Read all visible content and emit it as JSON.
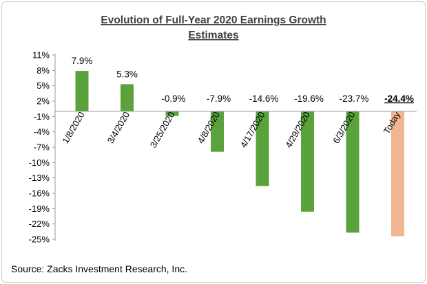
{
  "chart_data": {
    "type": "bar",
    "title_lines": [
      "Evolution of  Full-Year 2020 Earnings Growth",
      "Estimates"
    ],
    "categories": [
      "1/8/2020",
      "3/4/2020",
      "3/25/2020",
      "4/8/2020",
      "4/17/2020",
      "4/29/2020",
      "6/3/2020",
      "Today"
    ],
    "values": [
      7.9,
      5.3,
      -0.9,
      -7.9,
      -14.6,
      -19.6,
      -23.7,
      -24.4
    ],
    "data_labels": [
      "7.9%",
      "5.3%",
      "-0.9%",
      "-7.9%",
      "-14.6%",
      "-19.6%",
      "-23.7%",
      "-24.4%"
    ],
    "highlight_index": 7,
    "y_ticks": [
      11,
      8,
      5,
      2,
      -1,
      -4,
      -7,
      -10,
      -13,
      -16,
      -19,
      -22,
      -25
    ],
    "y_tick_labels": [
      "11%",
      "8%",
      "5%",
      "2%",
      "-1%",
      "-4%",
      "-7%",
      "-10%",
      "-13%",
      "-16%",
      "-19%",
      "-22%",
      "-25%"
    ],
    "ylim": [
      -25,
      11
    ],
    "colors": {
      "bar": "#5aa33c",
      "highlight_bar": "#f0b591",
      "axis": "#9a9a9a",
      "title": "#404040"
    },
    "grid": false,
    "source": "Source: Zacks Investment Research, Inc."
  }
}
